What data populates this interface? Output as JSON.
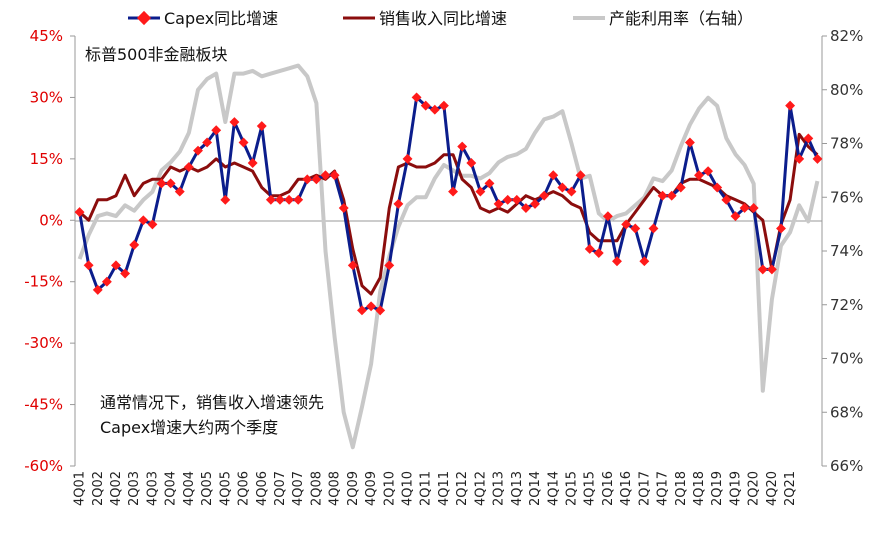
{
  "chart_data": {
    "type": "line",
    "subtitle": "标普500非金融板块",
    "annotation": [
      "通常情况下，销售收入增速领先",
      "Capex增速大约两个季度"
    ],
    "legend": {
      "position": "top",
      "entries": [
        "Capex同比增速",
        "销售收入同比增速",
        "产能利用率（右轴）"
      ]
    },
    "colors": {
      "capex": "#0b1d8c",
      "capex_marker": "#ff1a1a",
      "sales": "#8b0d0d",
      "utilization": "#c8c8c8",
      "left_axis": "#e00000"
    },
    "y_left": {
      "min": -60,
      "max": 45,
      "ticks": [
        "45%",
        "30%",
        "15%",
        "0%",
        "-15%",
        "-30%",
        "-45%",
        "-60%"
      ]
    },
    "y_right": {
      "min": 66,
      "max": 82,
      "ticks": [
        "82%",
        "80%",
        "78%",
        "76%",
        "74%",
        "72%",
        "70%",
        "68%",
        "66%"
      ]
    },
    "x_tick_labels": [
      "4Q01",
      "2Q02",
      "4Q02",
      "2Q03",
      "4Q03",
      "2Q04",
      "4Q04",
      "2Q05",
      "4Q05",
      "2Q06",
      "4Q06",
      "2Q07",
      "4Q07",
      "2Q08",
      "4Q08",
      "2Q09",
      "4Q09",
      "2Q10",
      "4Q10",
      "2Q11",
      "4Q11",
      "2Q12",
      "4Q12",
      "2Q13",
      "4Q13",
      "2Q14",
      "4Q14",
      "2Q15",
      "4Q15",
      "2Q16",
      "4Q16",
      "2Q17",
      "4Q17",
      "2Q18",
      "4Q18",
      "2Q19",
      "4Q19",
      "2Q20",
      "4Q20",
      "2Q21"
    ],
    "series": [
      {
        "name": "Capex同比增速",
        "values": [
          2,
          -11,
          -17,
          -15,
          -11,
          -13,
          -6,
          0,
          -1,
          9,
          9,
          7,
          13,
          17,
          19,
          22,
          5,
          24,
          19,
          14,
          23,
          5,
          5,
          5,
          5,
          10,
          10,
          11,
          11,
          3,
          -11,
          -22,
          -21,
          -22,
          -11,
          4,
          15,
          30,
          28,
          27,
          28,
          7,
          18,
          14,
          7,
          9,
          4,
          5,
          5,
          3,
          4,
          6,
          11,
          8,
          7,
          11,
          -7,
          -8,
          1,
          -10,
          -1,
          -2,
          -10,
          -2,
          6,
          6,
          8,
          19,
          11,
          12,
          8,
          5,
          1,
          3,
          3,
          -12,
          -12,
          -2,
          28,
          15,
          20,
          15
        ]
      },
      {
        "name": "销售收入同比增速",
        "values": [
          2,
          0,
          5,
          5,
          6,
          11,
          6,
          9,
          10,
          10,
          13,
          12,
          13,
          12,
          13,
          15,
          13,
          14,
          13,
          12,
          8,
          6,
          6,
          7,
          10,
          10,
          11,
          10,
          12,
          5,
          -7,
          -16,
          -18,
          -14,
          3,
          13,
          14,
          13,
          13,
          14,
          16,
          16,
          10,
          8,
          3,
          2,
          3,
          2,
          4,
          6,
          5,
          6,
          7,
          6,
          4,
          3,
          -3,
          -5,
          -5,
          -5,
          -1,
          2,
          5,
          8,
          6,
          6,
          9,
          10,
          10,
          9,
          8,
          6,
          5,
          4,
          2,
          0,
          -12,
          -1,
          5,
          21,
          18,
          16
        ]
      },
      {
        "name": "产能利用率（右轴）",
        "values": [
          73.7,
          74.6,
          75.3,
          75.4,
          75.3,
          75.7,
          75.5,
          75.9,
          76.2,
          77.0,
          77.3,
          77.7,
          78.4,
          80.0,
          80.4,
          80.6,
          78.8,
          80.6,
          80.6,
          80.7,
          80.5,
          80.6,
          80.7,
          80.8,
          80.9,
          80.5,
          79.5,
          74.0,
          70.8,
          68.0,
          66.7,
          68.2,
          69.8,
          72.5,
          73.8,
          74.9,
          75.7,
          76.0,
          76.0,
          76.7,
          77.2,
          77.0,
          76.8,
          76.8,
          76.7,
          76.9,
          77.3,
          77.5,
          77.6,
          77.8,
          78.4,
          78.9,
          79.0,
          79.2,
          78.0,
          76.7,
          76.8,
          75.4,
          75.1,
          75.3,
          75.4,
          75.7,
          76.0,
          76.7,
          76.6,
          77.0,
          77.9,
          78.7,
          79.3,
          79.7,
          79.4,
          78.2,
          77.6,
          77.2,
          76.5,
          68.8,
          72.2,
          74.2,
          74.7,
          75.7,
          75.1,
          76.6
        ]
      }
    ]
  }
}
